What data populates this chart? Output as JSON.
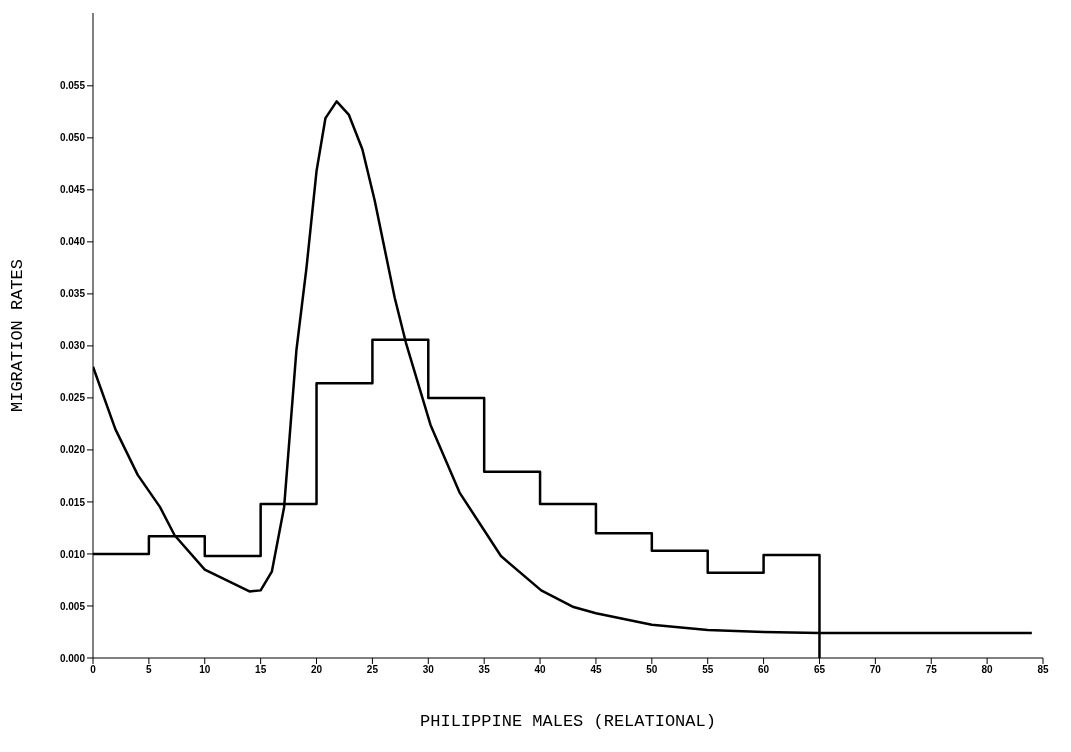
{
  "chart_data": {
    "type": "line",
    "xlabel": "PHILIPPINE MALES (RELATIONAL)",
    "ylabel": "MIGRATION RATES",
    "xlim": [
      0,
      85
    ],
    "xticks": [
      0,
      5,
      10,
      15,
      20,
      25,
      30,
      35,
      40,
      45,
      50,
      55,
      60,
      65,
      70,
      75,
      80,
      85
    ],
    "ylim": [
      0,
      0.062
    ],
    "yticks": [
      {
        "value": 0,
        "label": "0.000"
      },
      {
        "value": 0.005,
        "label": "0.005"
      },
      {
        "value": 0.01,
        "label": "0.010"
      },
      {
        "value": 0.015,
        "label": "0.015"
      },
      {
        "value": 0.02,
        "label": "0.020"
      },
      {
        "value": 0.025,
        "label": "0.025"
      },
      {
        "value": 0.03,
        "label": "0.030"
      },
      {
        "value": 0.035,
        "label": "0.035"
      },
      {
        "value": 0.04,
        "label": "0.040"
      },
      {
        "value": 0.045,
        "label": "0.045"
      },
      {
        "value": 0.05,
        "label": "0.050"
      },
      {
        "value": 0.055,
        "label": "0.055"
      }
    ],
    "grid": false,
    "legend": false,
    "marker": "none",
    "line_style": "solid",
    "series": [
      {
        "type": "step",
        "color": "#000000",
        "x": [
          0,
          5,
          10,
          15,
          20,
          25,
          30,
          35,
          40,
          45,
          50,
          55,
          60,
          65
        ],
        "values": [
          0.01,
          0.0117,
          0.0098,
          0.0148,
          0.0264,
          0.0306,
          0.025,
          0.0179,
          0.0148,
          0.012,
          0.0103,
          0.0082,
          0.0099,
          0
        ]
      },
      {
        "type": "line",
        "color": "#000000",
        "x": [
          0,
          2,
          4,
          6,
          7.3,
          10,
          14,
          15,
          16,
          17.1,
          18.2,
          19.1,
          20,
          20.8,
          21.8,
          22.9,
          24.1,
          25.2,
          27,
          28,
          30.2,
          32.8,
          36.5,
          40.1,
          43,
          45,
          50,
          55,
          60,
          65,
          70,
          75,
          80,
          84
        ],
        "values": [
          0.028,
          0.022,
          0.0176,
          0.0145,
          0.0118,
          0.0085,
          0.0064,
          0.0065,
          0.0083,
          0.0145,
          0.0296,
          0.0375,
          0.0468,
          0.0519,
          0.0535,
          0.0522,
          0.0489,
          0.044,
          0.0346,
          0.0303,
          0.0224,
          0.0159,
          0.0098,
          0.0065,
          0.0049,
          0.0043,
          0.0032,
          0.0027,
          0.0025,
          0.0024,
          0.0024,
          0.0024,
          0.0024,
          0.0024
        ]
      }
    ]
  }
}
